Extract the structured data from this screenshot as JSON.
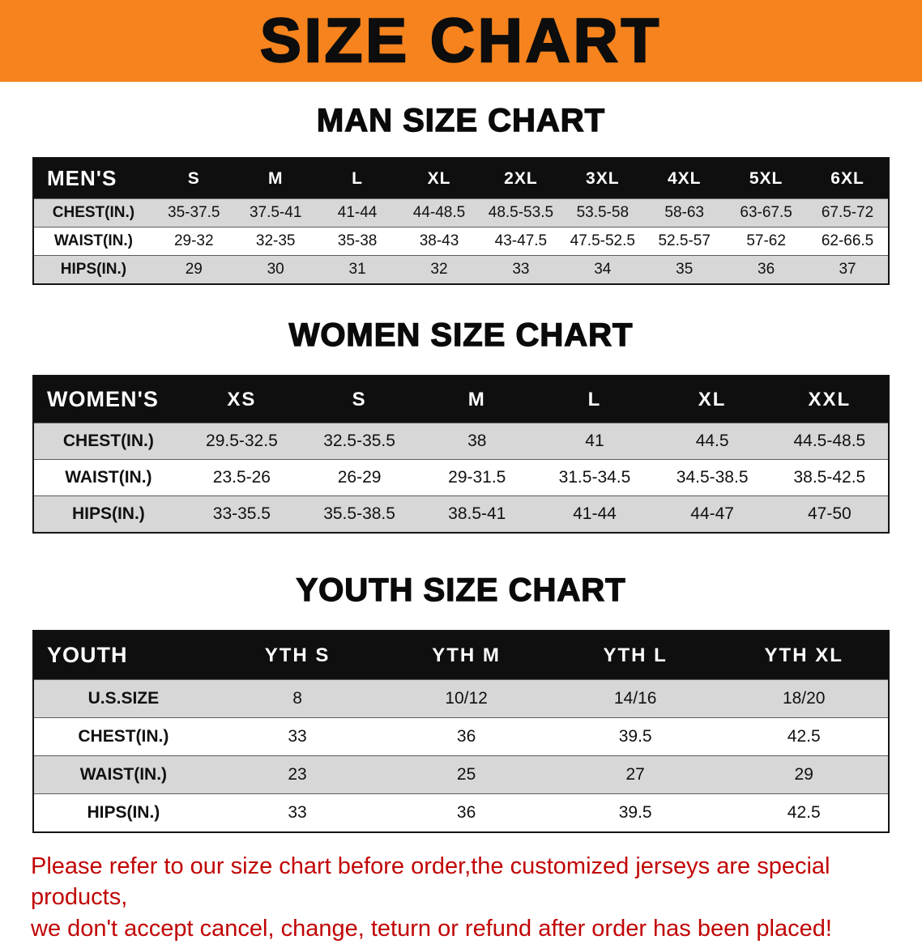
{
  "banner": {
    "title": "SIZE CHART"
  },
  "men": {
    "heading": "MAN SIZE CHART",
    "header": [
      "MEN'S",
      "S",
      "M",
      "L",
      "XL",
      "2XL",
      "3XL",
      "4XL",
      "5XL",
      "6XL"
    ],
    "rows": [
      {
        "label": "CHEST(IN.)",
        "values": [
          "35-37.5",
          "37.5-41",
          "41-44",
          "44-48.5",
          "48.5-53.5",
          "53.5-58",
          "58-63",
          "63-67.5",
          "67.5-72"
        ]
      },
      {
        "label": "WAIST(IN.)",
        "values": [
          "29-32",
          "32-35",
          "35-38",
          "38-43",
          "43-47.5",
          "47.5-52.5",
          "52.5-57",
          "57-62",
          "62-66.5"
        ]
      },
      {
        "label": "HIPS(IN.)",
        "values": [
          "29",
          "30",
          "31",
          "32",
          "33",
          "34",
          "35",
          "36",
          "37"
        ]
      }
    ]
  },
  "women": {
    "heading": "WOMEN SIZE CHART",
    "header": [
      "WOMEN'S",
      "XS",
      "S",
      "M",
      "L",
      "XL",
      "XXL"
    ],
    "rows": [
      {
        "label": "CHEST(IN.)",
        "values": [
          "29.5-32.5",
          "32.5-35.5",
          "38",
          "41",
          "44.5",
          "44.5-48.5"
        ]
      },
      {
        "label": "WAIST(IN.)",
        "values": [
          "23.5-26",
          "26-29",
          "29-31.5",
          "31.5-34.5",
          "34.5-38.5",
          "38.5-42.5"
        ]
      },
      {
        "label": "HIPS(IN.)",
        "values": [
          "33-35.5",
          "35.5-38.5",
          "38.5-41",
          "41-44",
          "44-47",
          "47-50"
        ]
      }
    ]
  },
  "youth": {
    "heading": "YOUTH SIZE CHART",
    "header": [
      "YOUTH",
      "YTH S",
      "YTH M",
      "YTH L",
      "YTH XL"
    ],
    "rows": [
      {
        "label": "U.S.SIZE",
        "values": [
          "8",
          "10/12",
          "14/16",
          "18/20"
        ]
      },
      {
        "label": "CHEST(IN.)",
        "values": [
          "33",
          "36",
          "39.5",
          "42.5"
        ]
      },
      {
        "label": "WAIST(IN.)",
        "values": [
          "23",
          "25",
          "27",
          "29"
        ]
      },
      {
        "label": "HIPS(IN.)",
        "values": [
          "33",
          "36",
          "39.5",
          "42.5"
        ]
      }
    ]
  },
  "footer": {
    "line1": "Please refer to our size chart before order,the customized jerseys are special products,",
    "line2": "we don't accept cancel, change, teturn or refund after order has been placed!"
  },
  "colors": {
    "banner_bg": "#f6831d",
    "header_bg": "#0f0f0f",
    "row_alt": "#d7d7d7",
    "footer_text": "#c10505"
  }
}
